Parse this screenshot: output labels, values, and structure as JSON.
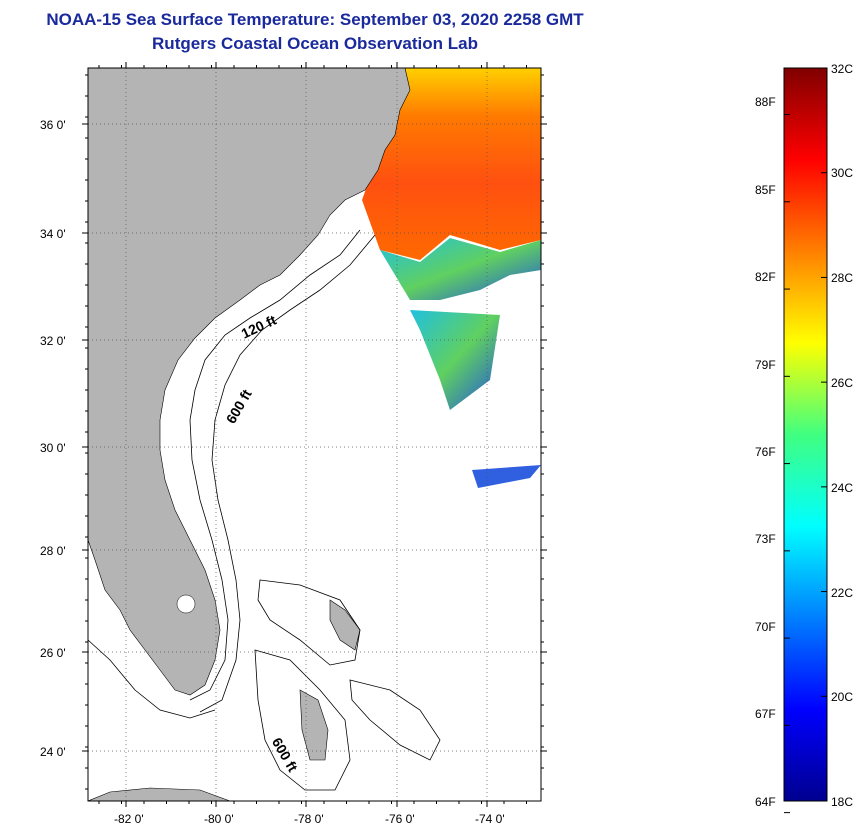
{
  "title": {
    "line1": "NOAA-15 Sea Surface Temperature:  September 03, 2020 2258 GMT",
    "line2": "Rutgers Coastal Ocean Observation Lab"
  },
  "map": {
    "lat_ticks": [
      "36 0'",
      "34 0'",
      "32 0'",
      "30 0'",
      "28 0'",
      "26 0'",
      "24 0'"
    ],
    "lon_ticks": [
      "-82 0'",
      "-80 0'",
      "-78 0'",
      "-76 0'",
      "-74 0'"
    ],
    "contour_labels": [
      "120 ft",
      "600 ft",
      "600 ft"
    ],
    "land_color": "#b4b4b4",
    "ocean_color": "#ffffff"
  },
  "colorbar": {
    "celsius_labels": [
      "32C",
      "30C",
      "28C",
      "26C",
      "24C",
      "22C",
      "20C",
      "18C"
    ],
    "fahrenheit_labels": [
      "88F",
      "85F",
      "82F",
      "79F",
      "76F",
      "73F",
      "70F",
      "67F",
      "64F"
    ],
    "range_c": [
      18,
      32
    ],
    "colormap": "jet"
  }
}
